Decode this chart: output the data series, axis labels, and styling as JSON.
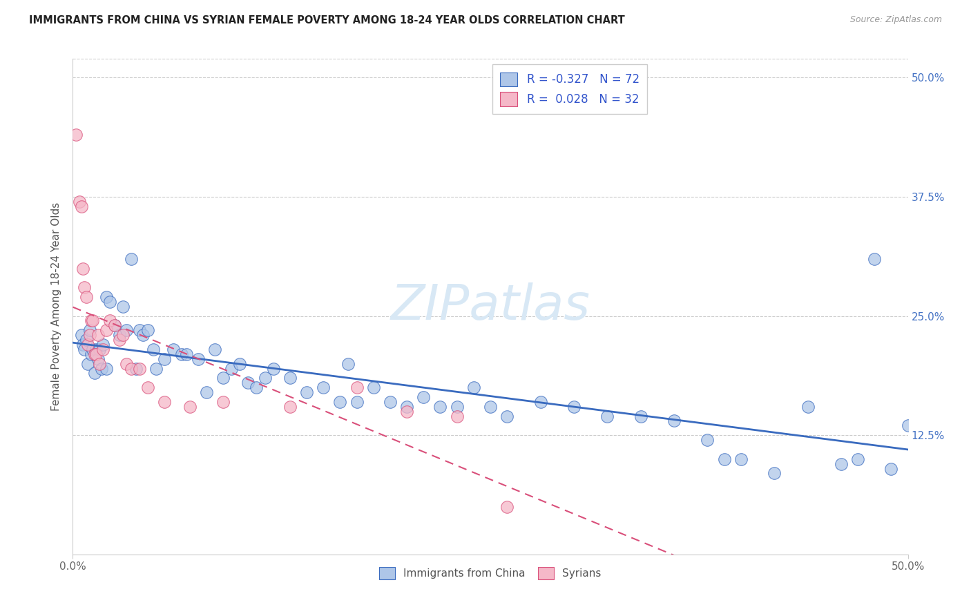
{
  "title": "IMMIGRANTS FROM CHINA VS SYRIAN FEMALE POVERTY AMONG 18-24 YEAR OLDS CORRELATION CHART",
  "source": "Source: ZipAtlas.com",
  "ylabel": "Female Poverty Among 18-24 Year Olds",
  "ytick_vals": [
    0.125,
    0.25,
    0.375,
    0.5
  ],
  "ytick_labels": [
    "12.5%",
    "25.0%",
    "37.5%",
    "50.0%"
  ],
  "xlim": [
    0.0,
    0.5
  ],
  "ylim": [
    0.0,
    0.52
  ],
  "legend_label_china": "Immigrants from China",
  "legend_label_syrian": "Syrians",
  "china_color": "#aec6e8",
  "syrian_color": "#f5b8c8",
  "trendline_china_color": "#3a6bbf",
  "trendline_syrian_color": "#d94f7a",
  "china_R": -0.327,
  "china_N": 72,
  "syrian_R": 0.028,
  "syrian_N": 32,
  "china_x": [
    0.005,
    0.006,
    0.007,
    0.008,
    0.009,
    0.01,
    0.011,
    0.012,
    0.013,
    0.014,
    0.015,
    0.016,
    0.017,
    0.018,
    0.02,
    0.02,
    0.022,
    0.025,
    0.028,
    0.03,
    0.032,
    0.035,
    0.038,
    0.04,
    0.042,
    0.045,
    0.048,
    0.05,
    0.055,
    0.06,
    0.065,
    0.068,
    0.075,
    0.08,
    0.085,
    0.09,
    0.095,
    0.1,
    0.105,
    0.11,
    0.115,
    0.12,
    0.13,
    0.14,
    0.15,
    0.16,
    0.165,
    0.17,
    0.18,
    0.19,
    0.2,
    0.21,
    0.22,
    0.23,
    0.24,
    0.25,
    0.26,
    0.28,
    0.3,
    0.32,
    0.34,
    0.36,
    0.38,
    0.39,
    0.4,
    0.42,
    0.44,
    0.46,
    0.47,
    0.48,
    0.49,
    0.5
  ],
  "china_y": [
    0.23,
    0.22,
    0.215,
    0.225,
    0.2,
    0.235,
    0.21,
    0.215,
    0.19,
    0.215,
    0.205,
    0.215,
    0.195,
    0.22,
    0.27,
    0.195,
    0.265,
    0.24,
    0.23,
    0.26,
    0.235,
    0.31,
    0.195,
    0.235,
    0.23,
    0.235,
    0.215,
    0.195,
    0.205,
    0.215,
    0.21,
    0.21,
    0.205,
    0.17,
    0.215,
    0.185,
    0.195,
    0.2,
    0.18,
    0.175,
    0.185,
    0.195,
    0.185,
    0.17,
    0.175,
    0.16,
    0.2,
    0.16,
    0.175,
    0.16,
    0.155,
    0.165,
    0.155,
    0.155,
    0.175,
    0.155,
    0.145,
    0.16,
    0.155,
    0.145,
    0.145,
    0.14,
    0.12,
    0.1,
    0.1,
    0.085,
    0.155,
    0.095,
    0.1,
    0.31,
    0.09,
    0.135
  ],
  "syrian_x": [
    0.002,
    0.004,
    0.005,
    0.006,
    0.007,
    0.008,
    0.009,
    0.01,
    0.011,
    0.012,
    0.013,
    0.014,
    0.015,
    0.016,
    0.018,
    0.02,
    0.022,
    0.025,
    0.028,
    0.03,
    0.032,
    0.035,
    0.04,
    0.045,
    0.055,
    0.07,
    0.09,
    0.13,
    0.17,
    0.2,
    0.23,
    0.26
  ],
  "syrian_y": [
    0.44,
    0.37,
    0.365,
    0.3,
    0.28,
    0.27,
    0.22,
    0.23,
    0.245,
    0.245,
    0.21,
    0.21,
    0.23,
    0.2,
    0.215,
    0.235,
    0.245,
    0.24,
    0.225,
    0.23,
    0.2,
    0.195,
    0.195,
    0.175,
    0.16,
    0.155,
    0.16,
    0.155,
    0.175,
    0.15,
    0.145,
    0.05
  ]
}
